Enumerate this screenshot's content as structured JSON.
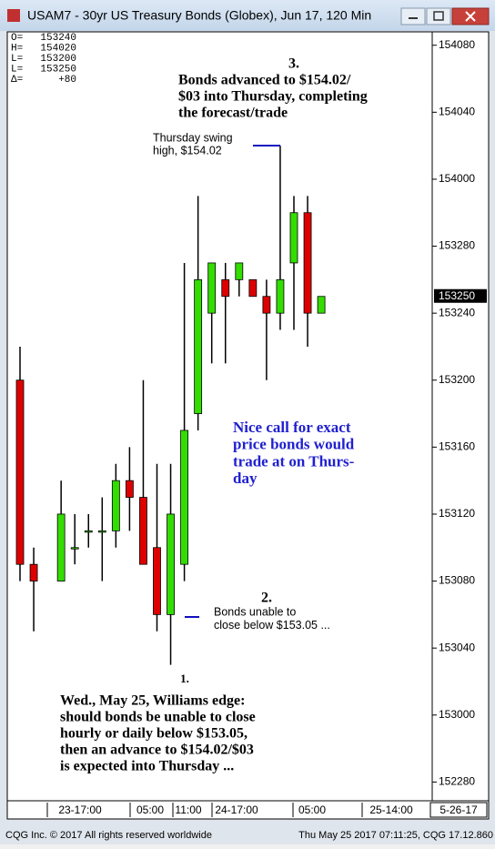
{
  "window_title": "USAM7 - 30yr US Treasury Bonds (Globex), Jun 17, 120 Min",
  "chart_data": {
    "type": "candlestick",
    "info": [
      {
        "label": "O=",
        "value": "153240"
      },
      {
        "label": "H=",
        "value": "154020"
      },
      {
        "label": "L=",
        "value": "153200"
      },
      {
        "label": "L=",
        "value": "153250"
      },
      {
        "label": "Δ=",
        "value": "+80"
      }
    ],
    "categories": [
      null,
      null,
      null,
      null,
      null,
      null,
      null,
      null,
      null,
      null,
      null,
      null,
      null,
      null,
      null,
      null,
      null,
      null,
      null,
      null,
      null,
      null,
      null
    ],
    "open": [
      153.625,
      153.28125,
      null,
      153.25,
      153.3125,
      153.34375,
      153.34375,
      153.34375,
      153.4375,
      153.40625,
      153.3125,
      153.1875,
      153.28125,
      153.5625,
      153.75,
      153.8125,
      153.8125,
      153.8125,
      153.78125,
      153.75,
      153.84375,
      153.9375,
      153.75
    ],
    "high": [
      153.6875,
      153.3125,
      null,
      153.4375,
      153.375,
      153.375,
      153.40625,
      153.46875,
      153.5,
      153.625,
      153.46875,
      153.46875,
      153.84375,
      153.96875,
      153.84375,
      153.84375,
      153.84375,
      153.8125,
      153.8125,
      154.0625,
      153.96875,
      153.96875,
      153.78125
    ],
    "low": [
      153.25,
      153.15625,
      null,
      153.25,
      153.28125,
      153.3125,
      153.25,
      153.3125,
      153.34375,
      153.28125,
      153.15625,
      153.09375,
      153.25,
      153.53125,
      153.65625,
      153.65625,
      153.78125,
      153.78125,
      153.625,
      153.71875,
      153.71875,
      153.6875,
      153.75
    ],
    "close": [
      153.28125,
      153.25,
      null,
      153.375,
      153.3125,
      153.34375,
      153.34375,
      153.4375,
      153.40625,
      153.28125,
      153.1875,
      153.375,
      153.53125,
      153.8125,
      153.84375,
      153.78125,
      153.84375,
      153.78125,
      153.75,
      153.8125,
      153.9375,
      153.75,
      153.78125
    ],
    "up_color": "#33dd00",
    "down_color": "#dd0000",
    "ylim": [
      152.84,
      154.275
    ],
    "yticks": [
      {
        "value": 154.25,
        "label": "154080"
      },
      {
        "value": 154.125,
        "label": "154040"
      },
      {
        "value": 154.0,
        "label": "154000"
      },
      {
        "value": 153.875,
        "label": "153280"
      },
      {
        "value": 153.75,
        "label": "153240"
      },
      {
        "value": 153.625,
        "label": "153200"
      },
      {
        "value": 153.5,
        "label": "153160"
      },
      {
        "value": 153.375,
        "label": "153120"
      },
      {
        "value": 153.25,
        "label": "153080"
      },
      {
        "value": 153.125,
        "label": "153040"
      },
      {
        "value": 153.0,
        "label": "153000"
      },
      {
        "value": 152.875,
        "label": "152280"
      }
    ],
    "last_price": {
      "value": 153.78125,
      "label": "153250"
    },
    "time_labels": [
      "23-17:00",
      "05:00",
      "11:00",
      "24-17:00",
      "05:00",
      "25-14:00"
    ],
    "date_label": "5-26-17",
    "annotations": [
      {
        "lines": [
          "3."
        ]
      },
      {
        "lines": [
          "Bonds advanced to $154.02/",
          "$03 into Thursday, completing",
          "the forecast/trade"
        ]
      },
      {
        "lines": [
          "Thursday swing",
          "high, $154.02"
        ]
      },
      {
        "lines": [
          "Nice call for exact",
          "price bonds would",
          "trade at on Thurs-",
          "day"
        ]
      },
      {
        "lines": [
          "2."
        ]
      },
      {
        "lines": [
          "Bonds unable to",
          "close below $153.05 ..."
        ]
      },
      {
        "lines": [
          "1."
        ]
      },
      {
        "lines": [
          "Wed., May 25, Williams edge:",
          "should bonds be unable to close",
          "hourly or daily below $153.05,",
          "then an advance to $154.02/$03",
          "is expected into Thursday ..."
        ]
      }
    ]
  },
  "footer": {
    "left": "CQG Inc. © 2017 All rights reserved worldwide",
    "right": "Thu May 25 2017 07:11:25, CQG 17.12.860"
  }
}
